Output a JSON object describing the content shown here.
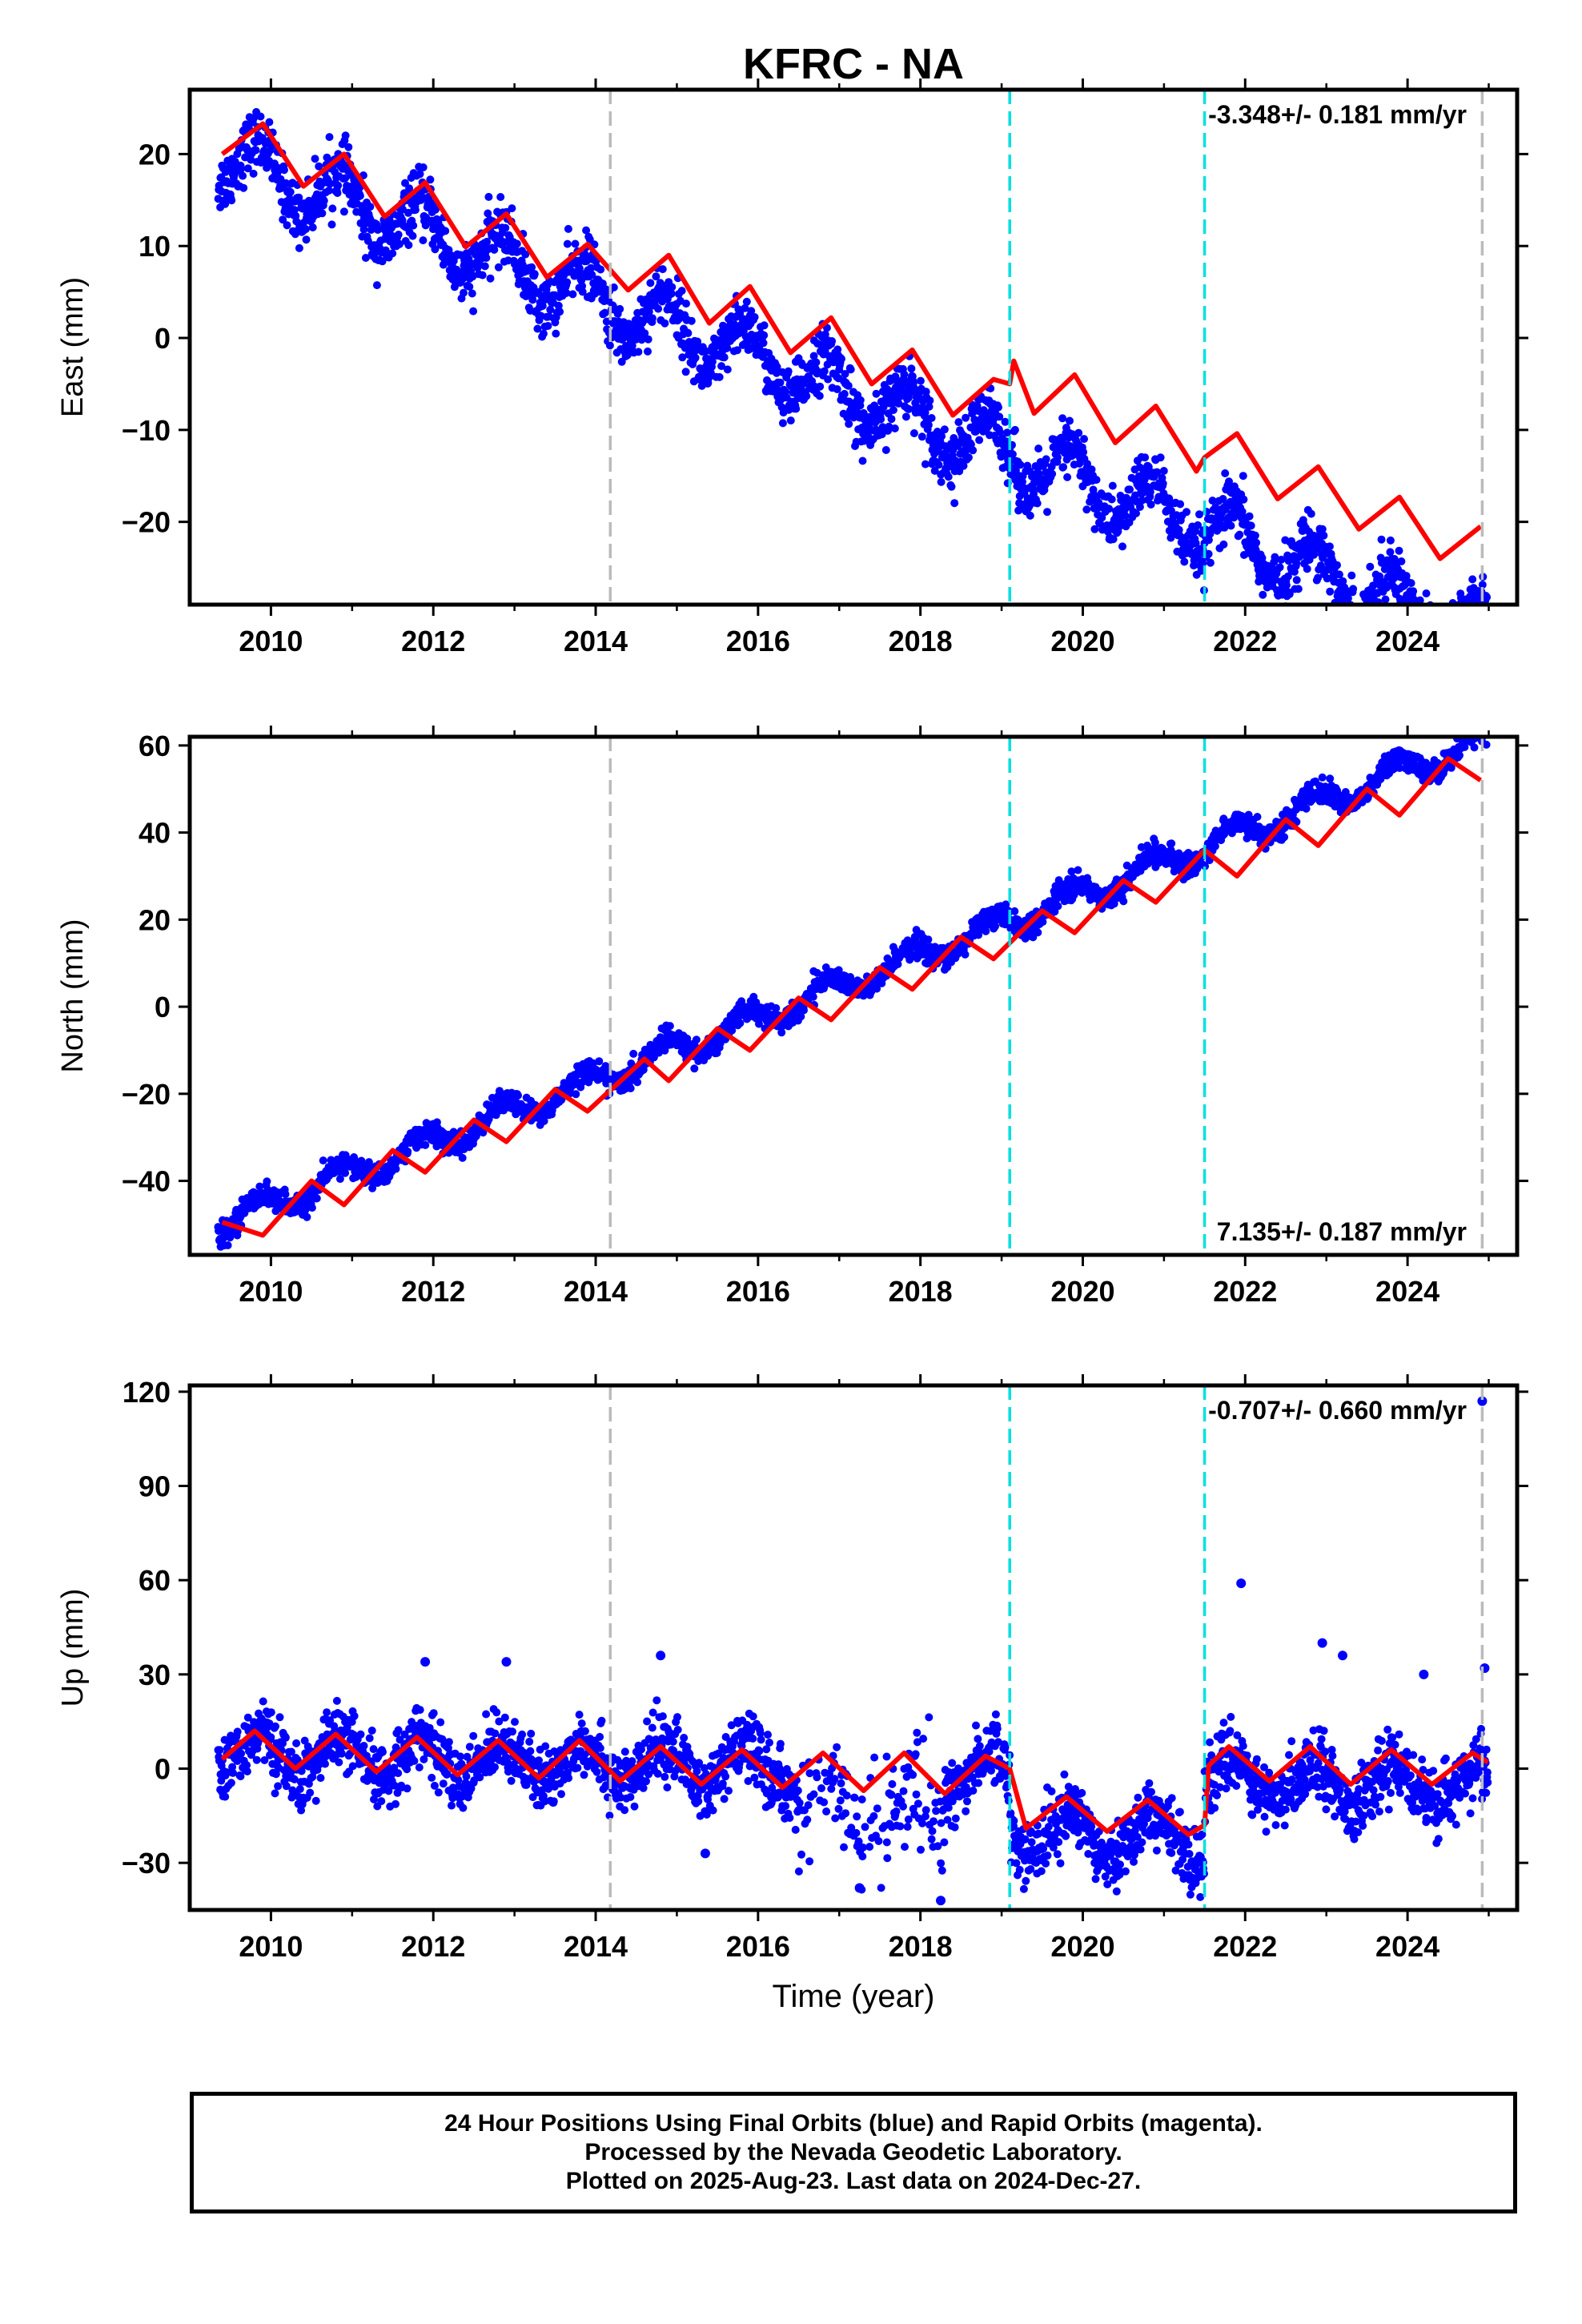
{
  "chart_data": {
    "type": "scatter",
    "title": "KFRC - NA",
    "xlabel": "Time (year)",
    "xlim": [
      2009.0,
      2025.35
    ],
    "xticks": [
      2010,
      2012,
      2014,
      2016,
      2018,
      2020,
      2022,
      2024
    ],
    "xtick_labels": [
      "2010",
      "2012",
      "2014",
      "2016",
      "2018",
      "2020",
      "2022",
      "2024"
    ],
    "data_range": [
      2009.35,
      2024.99
    ],
    "vertical_lines": [
      {
        "x": 2014.18,
        "color": "#bbbbbb",
        "style": "dashed"
      },
      {
        "x": 2019.1,
        "color": "#00e0e0",
        "style": "dashed"
      },
      {
        "x": 2021.5,
        "color": "#00e0e0",
        "style": "dashed"
      },
      {
        "x": 2024.92,
        "color": "#bbbbbb",
        "style": "dashed"
      }
    ],
    "colors": {
      "points": "#0000ff",
      "model": "#ff0000",
      "frame": "#000000"
    },
    "panels": [
      {
        "ylabel": "East (mm)",
        "ylim": [
          -29,
          27
        ],
        "yticks": [
          -20,
          -10,
          0,
          10,
          20
        ],
        "ytick_labels": [
          "−20",
          "−10",
          "0",
          "10",
          "20"
        ],
        "rate_label": "-3.348+/- 0.181 mm/yr",
        "rate_position": "top-right",
        "trend": {
          "start": 20.0,
          "rate": -3.348,
          "seasonal_amp": 3.2,
          "scatter_mm": 1.6
        },
        "model_points": [
          [
            2009.4,
            20
          ],
          [
            2009.9,
            23.3
          ],
          [
            2010.4,
            16.5
          ],
          [
            2010.9,
            20.0
          ],
          [
            2011.4,
            13.2
          ],
          [
            2011.9,
            16.9
          ],
          [
            2012.4,
            9.9
          ],
          [
            2012.9,
            13.5
          ],
          [
            2013.4,
            6.6
          ],
          [
            2013.9,
            10.2
          ],
          [
            2014.4,
            5.2
          ],
          [
            2014.9,
            9.0
          ],
          [
            2015.4,
            1.6
          ],
          [
            2015.9,
            5.6
          ],
          [
            2016.4,
            -1.6
          ],
          [
            2016.9,
            2.2
          ],
          [
            2017.4,
            -5.0
          ],
          [
            2017.9,
            -1.3
          ],
          [
            2018.4,
            -8.4
          ],
          [
            2018.9,
            -4.5
          ],
          [
            2019.1,
            -5.0
          ],
          [
            2019.15,
            -2.5
          ],
          [
            2019.4,
            -8.2
          ],
          [
            2019.9,
            -4.0
          ],
          [
            2020.4,
            -11.4
          ],
          [
            2020.9,
            -7.4
          ],
          [
            2021.4,
            -14.5
          ],
          [
            2021.5,
            -13.0
          ],
          [
            2021.9,
            -10.4
          ],
          [
            2022.4,
            -17.5
          ],
          [
            2022.9,
            -14.0
          ],
          [
            2023.4,
            -20.8
          ],
          [
            2023.9,
            -17.3
          ],
          [
            2024.4,
            -24.0
          ],
          [
            2024.9,
            -20.5
          ]
        ]
      },
      {
        "ylabel": "North (mm)",
        "ylim": [
          -57,
          62
        ],
        "yticks": [
          -40,
          -20,
          0,
          20,
          40,
          60
        ],
        "ytick_labels": [
          "−40",
          "−20",
          "0",
          "20",
          "40",
          "60"
        ],
        "rate_label": "7.135+/- 0.187 mm/yr",
        "rate_position": "bottom-right",
        "trend": {
          "start": -50.0,
          "rate": 7.135,
          "seasonal_amp": 3.0,
          "scatter_mm": 1.3
        },
        "model_points": [
          [
            2009.4,
            -49.5
          ],
          [
            2009.9,
            -52.5
          ],
          [
            2010.5,
            -40.0
          ],
          [
            2010.9,
            -45.5
          ],
          [
            2011.5,
            -33.0
          ],
          [
            2011.9,
            -38.0
          ],
          [
            2012.5,
            -26.0
          ],
          [
            2012.9,
            -31.0
          ],
          [
            2013.5,
            -19.0
          ],
          [
            2013.9,
            -24.0
          ],
          [
            2014.6,
            -12.0
          ],
          [
            2014.9,
            -17.0
          ],
          [
            2015.5,
            -5.0
          ],
          [
            2015.9,
            -10.0
          ],
          [
            2016.5,
            2.0
          ],
          [
            2016.9,
            -3.0
          ],
          [
            2017.5,
            9.0
          ],
          [
            2017.9,
            4.0
          ],
          [
            2018.5,
            16.0
          ],
          [
            2018.9,
            11.0
          ],
          [
            2019.5,
            22.0
          ],
          [
            2019.9,
            17.0
          ],
          [
            2020.5,
            29.0
          ],
          [
            2020.9,
            24.0
          ],
          [
            2021.5,
            36.0
          ],
          [
            2021.9,
            30.0
          ],
          [
            2022.5,
            43.0
          ],
          [
            2022.9,
            37.0
          ],
          [
            2023.5,
            50.0
          ],
          [
            2023.9,
            44.0
          ],
          [
            2024.5,
            57.0
          ],
          [
            2024.9,
            52.0
          ]
        ]
      },
      {
        "ylabel": "Up (mm)",
        "ylim": [
          -45,
          122
        ],
        "yticks": [
          -30,
          0,
          30,
          60,
          90,
          120
        ],
        "ytick_labels": [
          "−30",
          "0",
          "30",
          "60",
          "90",
          "120"
        ],
        "rate_label": "-0.707+/- 0.660 mm/yr",
        "rate_position": "top-right",
        "trend": {
          "start": 5.0,
          "rate": -0.707,
          "seasonal_amp": 7.0,
          "scatter_mm": 5.0
        },
        "offset": {
          "start": 2019.1,
          "end": 2021.5,
          "value": -18
        },
        "gap": {
          "start": 2016.5,
          "end": 2018.3
        },
        "model_points": [
          [
            2009.4,
            3
          ],
          [
            2009.8,
            12
          ],
          [
            2010.3,
            0
          ],
          [
            2010.8,
            11
          ],
          [
            2011.3,
            -1
          ],
          [
            2011.8,
            10
          ],
          [
            2012.3,
            -2
          ],
          [
            2012.8,
            9
          ],
          [
            2013.3,
            -3
          ],
          [
            2013.8,
            9
          ],
          [
            2014.3,
            -4
          ],
          [
            2014.8,
            7
          ],
          [
            2015.3,
            -5
          ],
          [
            2015.8,
            6
          ],
          [
            2016.3,
            -6
          ],
          [
            2016.8,
            5
          ],
          [
            2017.3,
            -7
          ],
          [
            2017.8,
            5
          ],
          [
            2018.3,
            -8
          ],
          [
            2018.8,
            4
          ],
          [
            2019.1,
            0
          ],
          [
            2019.3,
            -19
          ],
          [
            2019.8,
            -9
          ],
          [
            2020.3,
            -20
          ],
          [
            2020.8,
            -10
          ],
          [
            2021.3,
            -21
          ],
          [
            2021.5,
            -18
          ],
          [
            2021.55,
            1
          ],
          [
            2021.8,
            7
          ],
          [
            2022.3,
            -4
          ],
          [
            2022.8,
            7
          ],
          [
            2023.3,
            -5
          ],
          [
            2023.8,
            6
          ],
          [
            2024.3,
            -5
          ],
          [
            2024.8,
            5
          ],
          [
            2024.99,
            2
          ]
        ],
        "outliers": [
          [
            2024.92,
            117
          ],
          [
            2021.95,
            59
          ],
          [
            2022.95,
            40
          ],
          [
            2023.2,
            36
          ],
          [
            2024.95,
            32
          ],
          [
            2014.8,
            36
          ],
          [
            2012.9,
            34
          ],
          [
            2011.9,
            34
          ],
          [
            2024.2,
            30
          ],
          [
            2018.25,
            -42
          ],
          [
            2017.25,
            -38
          ],
          [
            2015.35,
            -27
          ]
        ]
      }
    ]
  },
  "footer": {
    "line1": "24 Hour Positions Using Final Orbits (blue) and Rapid Orbits (magenta).",
    "line2": "Processed by the Nevada Geodetic Laboratory.",
    "line3": "Plotted on 2025-Aug-23. Last data on 2024-Dec-27."
  }
}
